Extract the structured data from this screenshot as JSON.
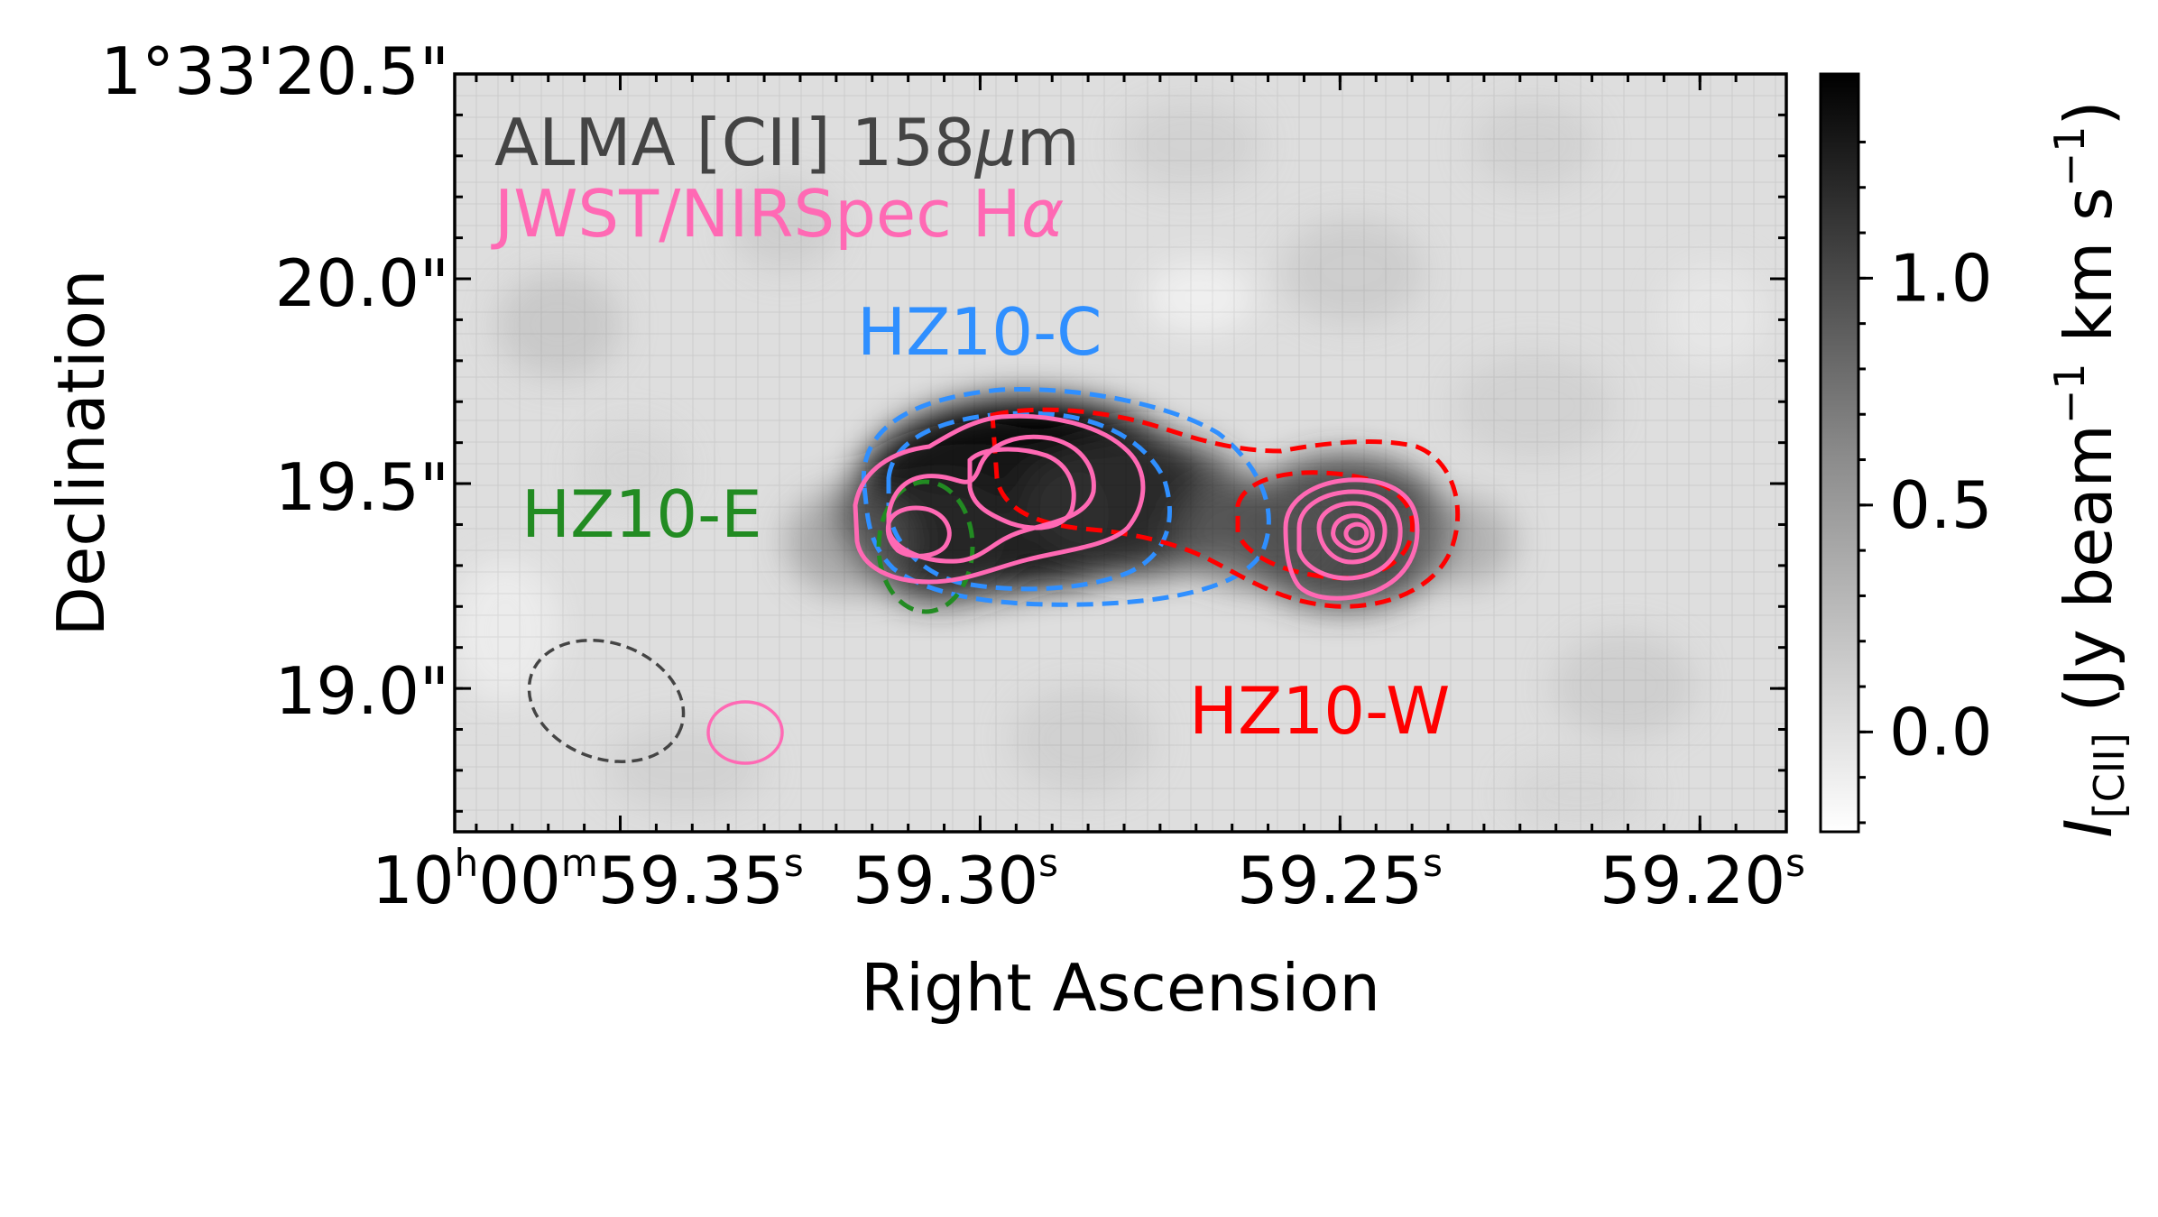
{
  "chart_data": {
    "type": "heatmap",
    "xlabel": "Right Ascension",
    "ylabel": "Declination",
    "x_ticks": [
      {
        "h": "10",
        "m": "00",
        "s": "59.35",
        "value": 59.35
      },
      {
        "s": "59.30",
        "value": 59.3
      },
      {
        "s": "59.25",
        "value": 59.25
      },
      {
        "s": "59.20",
        "value": 59.2
      }
    ],
    "x_range_seconds": [
      59.373,
      59.188
    ],
    "y_ticks": [
      {
        "label": "1°33'20.5\"",
        "value": 20.5
      },
      {
        "label": "20.0\"",
        "value": 20.0
      },
      {
        "label": "19.5\"",
        "value": 19.5
      },
      {
        "label": "19.0\"",
        "value": 19.0
      }
    ],
    "y_range_arcsec": [
      18.65,
      20.5
    ],
    "legend": [
      {
        "text": "ALMA [CII] 158",
        "mu": "μ",
        "unit": "m",
        "color": "#444444"
      },
      {
        "text": "JWST/NIRSpec H",
        "alpha": "α",
        "color": "#ff69b4"
      }
    ],
    "regions": [
      {
        "name": "HZ10-C",
        "color": "#2f8fff",
        "center": [
          59.297,
          19.46
        ]
      },
      {
        "name": "HZ10-E",
        "color": "#228b22",
        "center": [
          59.318,
          19.39
        ]
      },
      {
        "name": "HZ10-W",
        "color": "#ff0000",
        "center": [
          59.246,
          19.41
        ]
      }
    ],
    "beams": [
      {
        "name": "ALMA beam",
        "color": "#444444",
        "center": [
          59.355,
          18.97
        ]
      },
      {
        "name": "JWST beam",
        "color": "#ff69b4",
        "center": [
          59.338,
          18.91
        ]
      }
    ],
    "colorbar": {
      "label_main": "I",
      "label_sub": "[CII]",
      "label_units": " (Jy beam",
      "label_exp1": "−1",
      "label_mid": " km s",
      "label_exp2": "−1",
      "label_close": ")",
      "ticks": [
        {
          "label": "0.0",
          "value": 0.0
        },
        {
          "label": "0.5",
          "value": 0.5
        },
        {
          "label": "1.0",
          "value": 1.0
        }
      ],
      "range": [
        -0.22,
        1.45
      ],
      "cmap": "gray_r"
    },
    "peak_intensity_approx": 1.4
  },
  "colors": {
    "cii_label": "#444444",
    "halpha": "#ff69b4",
    "hz10c": "#2f8fff",
    "hz10e": "#228b22",
    "hz10w": "#ff0000"
  }
}
